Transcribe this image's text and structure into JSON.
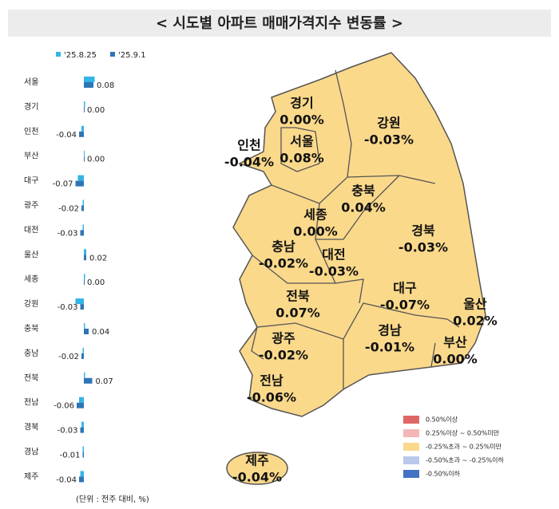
{
  "chart_data": {
    "type": "bar",
    "orientation": "horizontal",
    "title": "< 시도별 아파트 매매가격지수 변동률 >",
    "categories": [
      "서울",
      "경기",
      "인천",
      "부산",
      "대구",
      "광주",
      "대전",
      "울산",
      "세종",
      "강원",
      "충북",
      "충남",
      "전북",
      "전남",
      "경북",
      "경남",
      "제주"
    ],
    "series": [
      {
        "name": "'25.8.25",
        "color": "#33b5e5",
        "values": [
          0.09,
          0.01,
          -0.02,
          0.0,
          -0.05,
          -0.01,
          -0.01,
          0.02,
          0.01,
          -0.07,
          0.01,
          -0.01,
          0.01,
          -0.04,
          -0.02,
          -0.01,
          -0.03
        ]
      },
      {
        "name": "'25.9.1",
        "color": "#2e75b6",
        "values": [
          0.08,
          0.0,
          -0.04,
          0.0,
          -0.07,
          -0.02,
          -0.03,
          0.02,
          0.0,
          -0.03,
          0.04,
          -0.02,
          0.07,
          -0.06,
          -0.03,
          -0.01,
          -0.04
        ],
        "value_labels": [
          "0.08",
          "0.00",
          "-0.04",
          "0.00",
          "-0.07",
          "-0.02",
          "-0.03",
          "0.02",
          "0.00",
          "-0.03",
          "0.04",
          "-0.02",
          "0.07",
          "-0.06",
          "-0.03",
          "-0.01",
          "-0.04"
        ]
      }
    ],
    "xlim": [
      -0.3,
      0.3
    ],
    "legend": "top",
    "footnote": "(단위 : 전주 대비, %)"
  },
  "map": {
    "regions": [
      {
        "name": "경기",
        "value": "0.00%"
      },
      {
        "name": "서울",
        "value": "0.08%"
      },
      {
        "name": "인천",
        "value": "-0.04%"
      },
      {
        "name": "강원",
        "value": "-0.03%"
      },
      {
        "name": "충북",
        "value": "0.04%"
      },
      {
        "name": "세종",
        "value": "0.00%"
      },
      {
        "name": "충남",
        "value": "-0.02%"
      },
      {
        "name": "대전",
        "value": "-0.03%"
      },
      {
        "name": "경북",
        "value": "-0.03%"
      },
      {
        "name": "대구",
        "value": "-0.07%"
      },
      {
        "name": "울산",
        "value": "0.02%"
      },
      {
        "name": "전북",
        "value": "0.07%"
      },
      {
        "name": "경남",
        "value": "-0.01%"
      },
      {
        "name": "부산",
        "value": "0.00%"
      },
      {
        "name": "광주",
        "value": "-0.02%"
      },
      {
        "name": "전남",
        "value": "-0.06%"
      },
      {
        "name": "제주",
        "value": "-0.04%"
      }
    ],
    "legend": [
      {
        "label": "0.50%이상",
        "color": "#e06666"
      },
      {
        "label": "0.25%이상 ~ 0.50%미만",
        "color": "#f4b6b6"
      },
      {
        "label": "-0.25%초과 ~ 0.25%미만",
        "color": "#fbd98b"
      },
      {
        "label": "-0.50%초과 ~ -0.25%이하",
        "color": "#b9c9ea"
      },
      {
        "label": "-0.50%이하",
        "color": "#4472c4"
      }
    ]
  }
}
